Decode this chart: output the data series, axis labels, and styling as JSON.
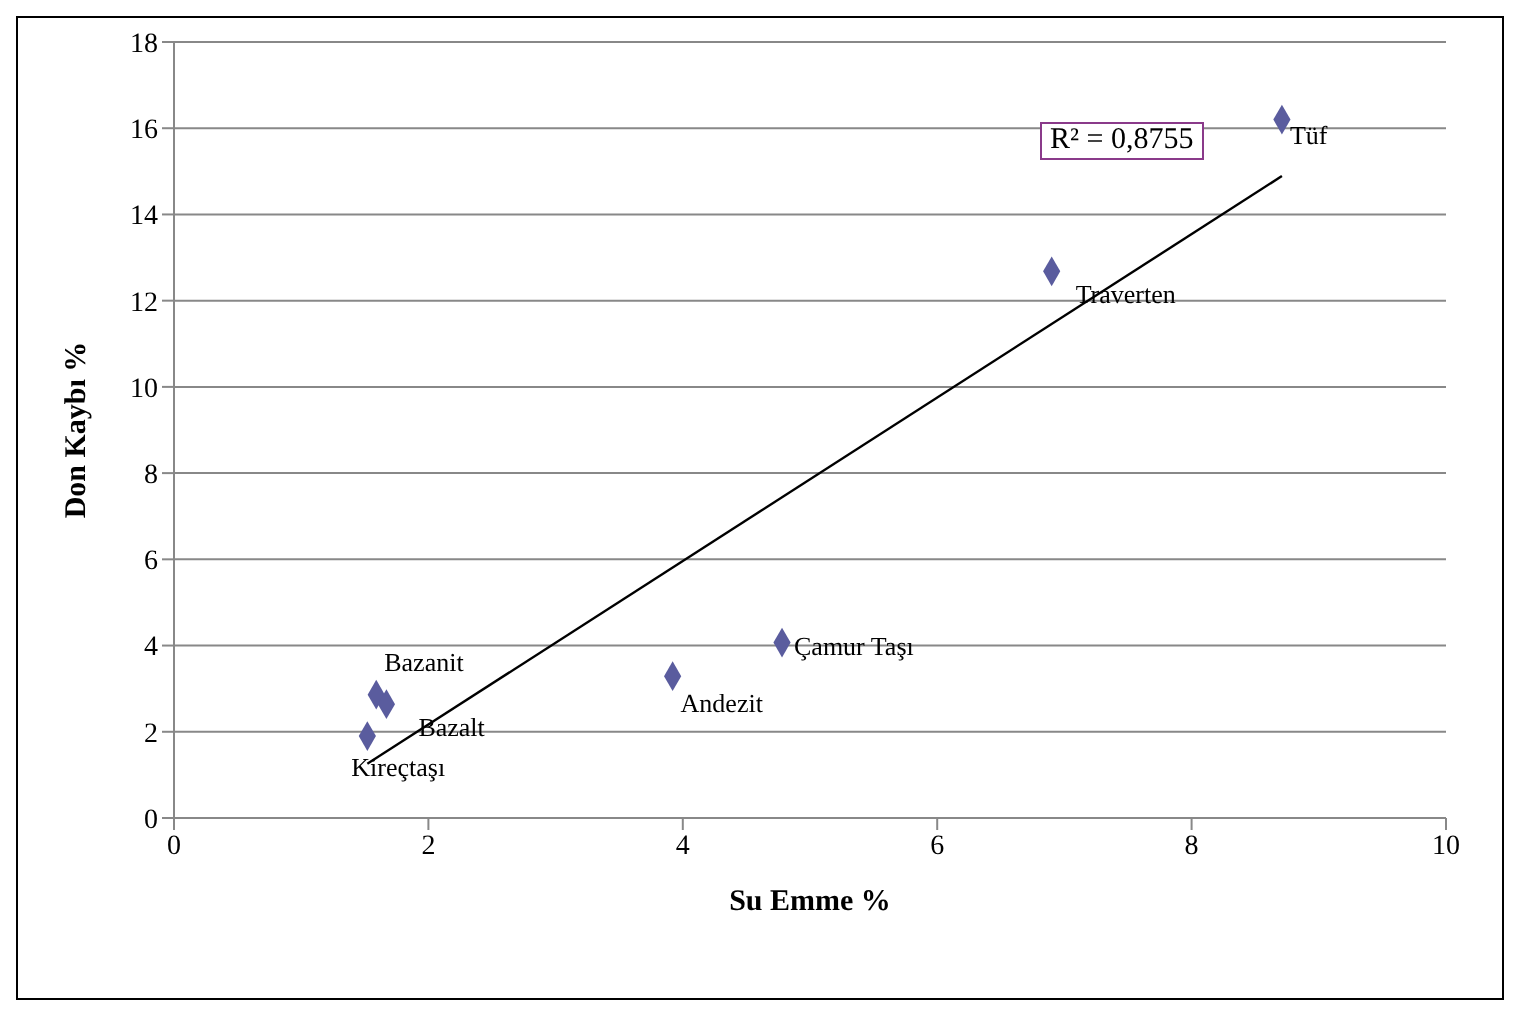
{
  "chart_data": {
    "type": "scatter",
    "xlabel": "Su Emme %",
    "ylabel": "Don Kaybı %",
    "series": [
      {
        "color": "#5a5c9e",
        "x": [
          8.71,
          6.9,
          4.78,
          3.92,
          1.59,
          1.67,
          1.52
        ],
        "values": [
          16.2,
          12.68,
          4.07,
          3.29,
          2.86,
          2.64,
          1.9
        ]
      },
      {
        "type": "line",
        "marker": "none",
        "color": "#000000",
        "x": [
          1.52,
          8.71
        ],
        "values": [
          1.26,
          14.89
        ]
      }
    ],
    "annotations": [
      {
        "text": "Tüf",
        "x": 8.71,
        "y": 16.2
      },
      {
        "text": "Traverten",
        "x": 6.9,
        "y": 12.68
      },
      {
        "text": "Çamur Taşı",
        "x": 4.78,
        "y": 4.07
      },
      {
        "text": "Andezit",
        "x": 3.92,
        "y": 3.29
      },
      {
        "text": "Bazanit",
        "x": 1.59,
        "y": 2.86
      },
      {
        "text": "Bazalt",
        "x": 1.67,
        "y": 2.64
      },
      {
        "text": "Kireçtaşı",
        "x": 1.52,
        "y": 1.9
      },
      "R² = 0,8755"
    ],
    "xlim": [
      0,
      10
    ],
    "xticks": [
      0,
      2,
      4,
      6,
      8,
      10
    ],
    "ylim": [
      0,
      18
    ],
    "yticks": [
      0,
      2,
      4,
      6,
      8,
      10,
      12,
      14,
      16,
      18
    ],
    "grid": "y",
    "marker": "diamond"
  }
}
